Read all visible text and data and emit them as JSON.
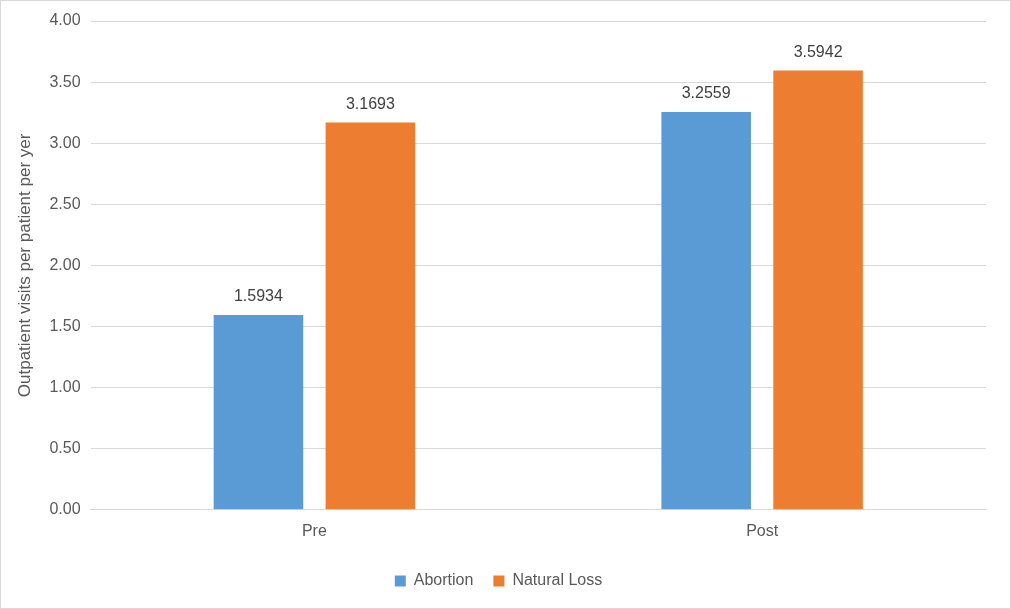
{
  "chart_data": {
    "type": "bar",
    "ylabel": "Outpatient visits per patient per yer",
    "categories": [
      "Pre",
      "Post"
    ],
    "series": [
      {
        "name": "Abortion",
        "color": "#5b9bd5",
        "values": [
          1.5934,
          3.2559
        ]
      },
      {
        "name": "Natural Loss",
        "color": "#ed7d31",
        "values": [
          3.1693,
          3.5942
        ]
      }
    ],
    "ylim": [
      0,
      4
    ],
    "yticks": [
      {
        "value": 0,
        "label": "0.00"
      },
      {
        "value": 0.5,
        "label": "0.50"
      },
      {
        "value": 1,
        "label": "1.00"
      },
      {
        "value": 1.5,
        "label": "1.50"
      },
      {
        "value": 2,
        "label": "2.00"
      },
      {
        "value": 2.5,
        "label": "2.50"
      },
      {
        "value": 3,
        "label": "3.00"
      },
      {
        "value": 3.5,
        "label": "3.50"
      },
      {
        "value": 4,
        "label": "4.00"
      }
    ],
    "grid": "y",
    "legend": "bottom",
    "data_labels": true
  }
}
